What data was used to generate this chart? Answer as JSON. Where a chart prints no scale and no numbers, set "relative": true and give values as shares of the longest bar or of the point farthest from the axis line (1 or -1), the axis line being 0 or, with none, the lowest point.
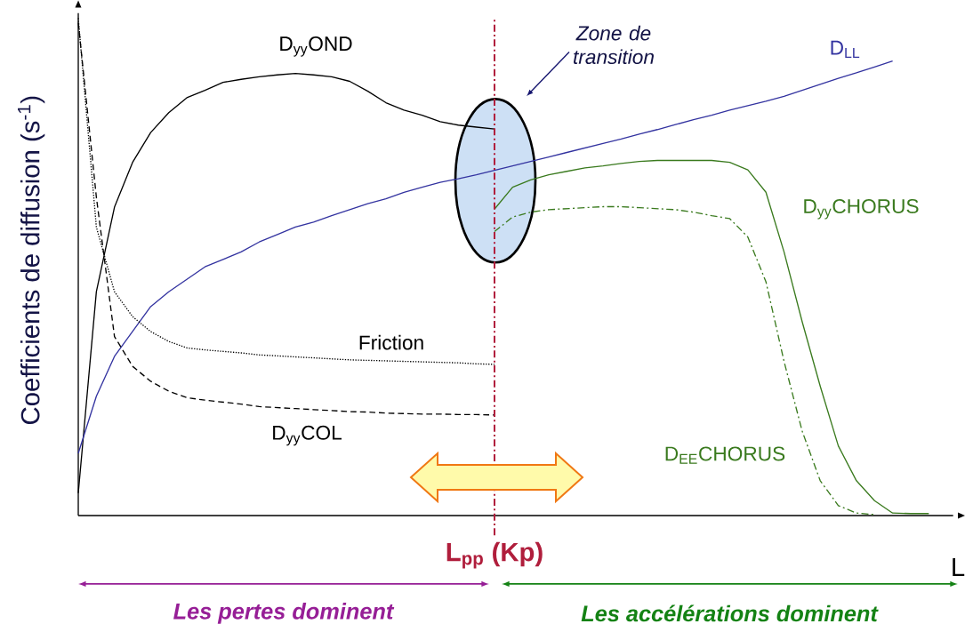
{
  "chart_data": {
    "type": "line",
    "relative": true,
    "ylabel": "Coefficients de diffusion (s$^{-1}$)",
    "xlabel": "L",
    "marker": "none",
    "categories": [
      null,
      null,
      null,
      null,
      null,
      null,
      null,
      null,
      null,
      null,
      null,
      null,
      null,
      null,
      null,
      null,
      null,
      null,
      null,
      null,
      null,
      null,
      null,
      null,
      null,
      null,
      null,
      null,
      null,
      null,
      null,
      null,
      null,
      null,
      null,
      null,
      null,
      null,
      null,
      null,
      null,
      null,
      null,
      null,
      null,
      null,
      null,
      null
    ],
    "series": [
      {
        "name": "D$_{yy}$OND",
        "color": "#000000",
        "line_style": "solid",
        "values": [
          0.045,
          0.45,
          0.62,
          0.71,
          0.77,
          0.81,
          0.84,
          0.855,
          0.871,
          0.877,
          0.882,
          0.886,
          0.889,
          0.886,
          0.882,
          0.873,
          0.853,
          0.83,
          0.815,
          0.805,
          0.792,
          0.785,
          0.781,
          0.777,
          null,
          null,
          null,
          null,
          null,
          null,
          null,
          null,
          null,
          null,
          null,
          null,
          null,
          null,
          null,
          null,
          null,
          null,
          null,
          null,
          null,
          null,
          null,
          null
        ]
      },
      {
        "name": "D$_{LL}$",
        "color": "#3333a0",
        "line_style": "solid",
        "values": [
          0.125,
          0.24,
          0.32,
          0.37,
          0.42,
          0.45,
          0.475,
          0.5,
          0.515,
          0.53,
          0.55,
          0.565,
          0.58,
          0.59,
          0.603,
          0.615,
          0.627,
          0.637,
          0.65,
          0.66,
          0.67,
          0.677,
          0.685,
          0.694,
          0.703,
          0.712,
          0.721,
          0.73,
          0.739,
          0.748,
          0.757,
          0.767,
          0.776,
          0.786,
          0.796,
          0.805,
          0.815,
          0.824,
          0.833,
          0.843,
          0.855,
          0.867,
          0.879,
          0.89,
          0.902,
          0.914,
          null,
          null
        ]
      },
      {
        "name": "Friction",
        "color": "#000000",
        "line_style": "dotted",
        "values": [
          1.0,
          0.58,
          0.45,
          0.4,
          0.37,
          0.35,
          0.337,
          0.333,
          0.33,
          0.327,
          0.323,
          0.321,
          0.319,
          0.317,
          0.315,
          0.313,
          0.312,
          0.311,
          0.31,
          0.309,
          0.308,
          0.307,
          0.305,
          0.304,
          null,
          null,
          null,
          null,
          null,
          null,
          null,
          null,
          null,
          null,
          null,
          null,
          null,
          null,
          null,
          null,
          null,
          null,
          null,
          null,
          null,
          null,
          null,
          null
        ]
      },
      {
        "name": "D$_{yy}$COL",
        "color": "#000000",
        "line_style": "dashed",
        "values": [
          0.991,
          0.64,
          0.36,
          0.3,
          0.27,
          0.25,
          0.237,
          0.232,
          0.228,
          0.224,
          0.219,
          0.217,
          0.215,
          0.213,
          0.211,
          0.209,
          0.208,
          0.206,
          0.205,
          0.204,
          0.204,
          0.203,
          0.203,
          0.202,
          null,
          null,
          null,
          null,
          null,
          null,
          null,
          null,
          null,
          null,
          null,
          null,
          null,
          null,
          null,
          null,
          null,
          null,
          null,
          null,
          null,
          null,
          null,
          null
        ]
      },
      {
        "name": "D$_{yy}$CHORUS",
        "color": "#3a7a1e",
        "line_style": "solid",
        "values": [
          null,
          null,
          null,
          null,
          null,
          null,
          null,
          null,
          null,
          null,
          null,
          null,
          null,
          null,
          null,
          null,
          null,
          null,
          null,
          null,
          null,
          null,
          null,
          0.616,
          0.66,
          0.675,
          0.685,
          0.692,
          0.699,
          0.703,
          0.708,
          0.712,
          0.714,
          0.714,
          0.714,
          0.714,
          0.71,
          0.695,
          0.65,
          0.53,
          0.39,
          0.26,
          0.14,
          0.07,
          0.03,
          0.005,
          0.004,
          0.004
        ]
      },
      {
        "name": "D$_{EE}$CHORUS",
        "color": "#3a7a1e",
        "line_style": "dashdot",
        "values": [
          null,
          null,
          null,
          null,
          null,
          null,
          null,
          null,
          null,
          null,
          null,
          null,
          null,
          null,
          null,
          null,
          null,
          null,
          null,
          null,
          null,
          null,
          null,
          0.571,
          0.6,
          0.61,
          0.615,
          0.617,
          0.619,
          0.621,
          0.621,
          0.619,
          0.617,
          0.615,
          0.61,
          0.603,
          0.597,
          0.56,
          0.47,
          0.31,
          0.17,
          0.07,
          0.02,
          0.005,
          0.002,
          null,
          null,
          null
        ]
      }
    ],
    "annotations": [
      "*Zone de transition*",
      "**L$_{pp}$ (Kp)**",
      "*Les pertes dominent*",
      "*Les accélérations dominent*"
    ]
  }
}
